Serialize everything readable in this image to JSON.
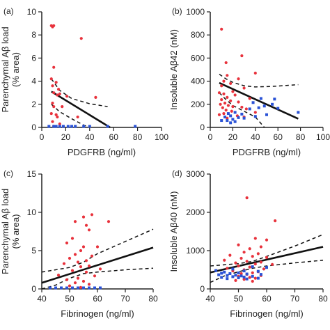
{
  "colors": {
    "group_red": "#e8323c",
    "group_blue": "#2a52d6",
    "axis": "#222222",
    "fit_line": "#111111"
  },
  "chart_data": [
    {
      "id": "a",
      "type": "scatter",
      "panel_label": "(a)",
      "xlabel": "PDGFRB (ng/ml)",
      "ylabel_lines": [
        "Parenchymal Aβ load",
        "(% area)"
      ],
      "xlim": [
        0,
        100
      ],
      "ylim": [
        0,
        10
      ],
      "xticks": [
        0,
        20,
        40,
        60,
        80,
        100
      ],
      "yticks": [
        0,
        2,
        4,
        6,
        8,
        10
      ],
      "grid": false,
      "series": [
        {
          "color": "#e8323c",
          "points": [
            [
              8,
              8.8
            ],
            [
              9,
              8.7
            ],
            [
              10,
              8.8
            ],
            [
              33,
              7.7
            ],
            [
              10,
              5.2
            ],
            [
              8,
              4.2
            ],
            [
              12,
              3.9
            ],
            [
              9,
              3.6
            ],
            [
              14,
              3.3
            ],
            [
              10,
              3.0
            ],
            [
              13,
              2.8
            ],
            [
              15,
              2.9
            ],
            [
              21,
              2.7
            ],
            [
              45,
              2.6
            ],
            [
              9,
              2.1
            ],
            [
              10,
              1.8
            ],
            [
              17,
              1.8
            ],
            [
              8,
              1.2
            ],
            [
              12,
              1.1
            ],
            [
              13,
              0.9
            ],
            [
              30,
              0.9
            ],
            [
              9,
              0.5
            ],
            [
              15,
              0.3
            ],
            [
              10,
              0.1
            ],
            [
              18,
              0.05
            ]
          ]
        },
        {
          "color": "#2a52d6",
          "points": [
            [
              6,
              0.05
            ],
            [
              10,
              0.05
            ],
            [
              12,
              0.05
            ],
            [
              15,
              0.05
            ],
            [
              18,
              0.05
            ],
            [
              22,
              0.05
            ],
            [
              25,
              0.05
            ],
            [
              28,
              0.05
            ],
            [
              35,
              0.05
            ],
            [
              40,
              0.05
            ],
            [
              55,
              0.05
            ],
            [
              78,
              0.05
            ]
          ]
        }
      ],
      "fit": {
        "x": [
          8,
          57
        ],
        "y": [
          3.1,
          0
        ]
      },
      "ci_upper": [
        [
          8,
          4.2
        ],
        [
          15,
          3.2
        ],
        [
          25,
          2.5
        ],
        [
          40,
          2.05
        ],
        [
          55,
          1.8
        ]
      ],
      "ci_lower": [
        [
          8,
          2.0
        ],
        [
          15,
          1.35
        ],
        [
          25,
          0.75
        ],
        [
          35,
          0.2
        ],
        [
          40,
          0
        ]
      ]
    },
    {
      "id": "b",
      "type": "scatter",
      "panel_label": "(b)",
      "xlabel": "PDGFRB (ng/ml)",
      "ylabel_lines": [
        "Insoluble Aβ42 (nM)"
      ],
      "xlim": [
        0,
        100
      ],
      "ylim": [
        0,
        1000
      ],
      "xticks": [
        0,
        20,
        40,
        60,
        80,
        100
      ],
      "yticks": [
        0,
        200,
        400,
        600,
        800,
        1000
      ],
      "grid": false,
      "series": [
        {
          "color": "#e8323c",
          "points": [
            [
              10,
              850
            ],
            [
              28,
              620
            ],
            [
              14,
              560
            ],
            [
              40,
              470
            ],
            [
              15,
              450
            ],
            [
              25,
              420
            ],
            [
              12,
              400
            ],
            [
              18,
              380
            ],
            [
              10,
              360
            ],
            [
              30,
              340
            ],
            [
              20,
              310
            ],
            [
              8,
              300
            ],
            [
              12,
              290
            ],
            [
              22,
              280
            ],
            [
              15,
              260
            ],
            [
              35,
              250
            ],
            [
              10,
              240
            ],
            [
              18,
              230
            ],
            [
              25,
              220
            ],
            [
              13,
              210
            ],
            [
              9,
              200
            ],
            [
              16,
              190
            ],
            [
              20,
              180
            ],
            [
              28,
              175
            ],
            [
              11,
              170
            ],
            [
              32,
              160
            ],
            [
              14,
              150
            ],
            [
              19,
              140
            ],
            [
              40,
              130
            ],
            [
              12,
              120
            ],
            [
              8,
              110
            ],
            [
              24,
              100
            ],
            [
              30,
              90
            ],
            [
              15,
              80
            ]
          ]
        },
        {
          "color": "#2a52d6",
          "points": [
            [
              45,
              250
            ],
            [
              57,
              245
            ],
            [
              38,
              215
            ],
            [
              55,
              200
            ],
            [
              48,
              185
            ],
            [
              43,
              170
            ],
            [
              60,
              165
            ],
            [
              35,
              160
            ],
            [
              78,
              130
            ],
            [
              22,
              130
            ],
            [
              16,
              120
            ],
            [
              28,
              115
            ],
            [
              50,
              110
            ],
            [
              18,
              100
            ],
            [
              40,
              95
            ],
            [
              13,
              90
            ],
            [
              25,
              85
            ],
            [
              30,
              80
            ],
            [
              20,
              70
            ],
            [
              15,
              60
            ],
            [
              10,
              60
            ],
            [
              22,
              50
            ],
            [
              18,
              40
            ]
          ]
        }
      ],
      "fit": {
        "x": [
          8,
          78
        ],
        "y": [
          385,
          75
        ]
      },
      "ci_upper": [
        [
          8,
          460
        ],
        [
          14,
          420
        ],
        [
          20,
          390
        ],
        [
          30,
          360
        ],
        [
          40,
          350
        ],
        [
          55,
          355
        ],
        [
          78,
          370
        ]
      ],
      "ci_lower": [
        [
          8,
          300
        ],
        [
          14,
          240
        ],
        [
          20,
          190
        ],
        [
          30,
          140
        ],
        [
          40,
          90
        ],
        [
          48,
          0
        ]
      ]
    },
    {
      "id": "c",
      "type": "scatter",
      "panel_label": "(c)",
      "xlabel": "Fibrinogen (ng/ml)",
      "ylabel_lines": [
        "Parenchymal Aβ load",
        "(% area)"
      ],
      "xlim": [
        40,
        80
      ],
      "ylim": [
        0,
        15
      ],
      "xticks": [
        40,
        50,
        60,
        70,
        80
      ],
      "yticks": [
        0,
        5,
        10,
        15
      ],
      "grid": false,
      "series": [
        {
          "color": "#e8323c",
          "points": [
            [
              58,
              9.7
            ],
            [
              55,
              9.4
            ],
            [
              64,
              8.8
            ],
            [
              52,
              8.8
            ],
            [
              56,
              8.3
            ],
            [
              57,
              7.7
            ],
            [
              51,
              6.6
            ],
            [
              49,
              6.0
            ],
            [
              55,
              5.5
            ],
            [
              60,
              5.5
            ],
            [
              54,
              5.0
            ],
            [
              52,
              4.5
            ],
            [
              58,
              4.3
            ],
            [
              50,
              4.0
            ],
            [
              56,
              3.7
            ],
            [
              53,
              3.5
            ],
            [
              48,
              3.3
            ],
            [
              57,
              3.0
            ],
            [
              54,
              2.9
            ],
            [
              61,
              2.6
            ],
            [
              51,
              2.4
            ],
            [
              56,
              2.2
            ],
            [
              46,
              1.8
            ],
            [
              59,
              1.7
            ],
            [
              53,
              1.4
            ],
            [
              49,
              1.2
            ],
            [
              55,
              1.0
            ],
            [
              52,
              0.8
            ],
            [
              57,
              0.6
            ],
            [
              50,
              0.4
            ],
            [
              54,
              0.2
            ]
          ]
        },
        {
          "color": "#2a52d6",
          "points": [
            [
              43,
              0.05
            ],
            [
              45,
              0.05
            ],
            [
              47,
              0.05
            ],
            [
              49,
              0.05
            ],
            [
              51,
              0.05
            ],
            [
              53,
              0.05
            ],
            [
              55,
              0.05
            ],
            [
              57,
              0.05
            ],
            [
              59,
              0.05
            ],
            [
              61,
              0.05
            ]
          ]
        }
      ],
      "fit": {
        "x": [
          40,
          80
        ],
        "y": [
          0.8,
          5.4
        ]
      },
      "ci_upper": [
        [
          40,
          2.2
        ],
        [
          50,
          2.8
        ],
        [
          55,
          3.5
        ],
        [
          60,
          4.6
        ],
        [
          70,
          6.2
        ],
        [
          80,
          7.8
        ]
      ],
      "ci_lower": [
        [
          40,
          0
        ],
        [
          45,
          0.5
        ],
        [
          50,
          1.4
        ],
        [
          55,
          2.0
        ],
        [
          60,
          2.2
        ],
        [
          70,
          2.5
        ],
        [
          80,
          2.7
        ]
      ]
    },
    {
      "id": "d",
      "type": "scatter",
      "panel_label": "(d)",
      "xlabel": "Fibrinogen (ng/ml)",
      "ylabel_lines": [
        "Insoluble Aβ40 (nM)"
      ],
      "xlim": [
        40,
        80
      ],
      "ylim": [
        0,
        3000
      ],
      "xticks": [
        40,
        50,
        60,
        70,
        80
      ],
      "yticks": [
        0,
        1000,
        2000,
        3000
      ],
      "grid": false,
      "series": [
        {
          "color": "#e8323c",
          "points": [
            [
              53,
              2380
            ],
            [
              63,
              1780
            ],
            [
              56,
              1320
            ],
            [
              60,
              1280
            ],
            [
              50,
              1150
            ],
            [
              58,
              1100
            ],
            [
              54,
              1050
            ],
            [
              52,
              960
            ],
            [
              57,
              920
            ],
            [
              47,
              880
            ],
            [
              55,
              850
            ],
            [
              60,
              820
            ],
            [
              51,
              800
            ],
            [
              45,
              750
            ],
            [
              53,
              720
            ],
            [
              58,
              700
            ],
            [
              49,
              680
            ],
            [
              56,
              650
            ],
            [
              62,
              640
            ],
            [
              50,
              600
            ],
            [
              54,
              570
            ],
            [
              46,
              540
            ],
            [
              59,
              520
            ],
            [
              52,
              500
            ],
            [
              48,
              470
            ],
            [
              57,
              450
            ],
            [
              55,
              420
            ],
            [
              51,
              400
            ],
            [
              53,
              380
            ],
            [
              58,
              350
            ],
            [
              50,
              330
            ],
            [
              54,
              300
            ],
            [
              56,
              280
            ],
            [
              52,
              250
            ],
            [
              49,
              220
            ],
            [
              55,
              200
            ]
          ]
        },
        {
          "color": "#2a52d6",
          "points": [
            [
              55,
              580
            ],
            [
              60,
              560
            ],
            [
              48,
              520
            ],
            [
              42,
              480
            ],
            [
              52,
              470
            ],
            [
              57,
              460
            ],
            [
              45,
              440
            ],
            [
              50,
              420
            ],
            [
              44,
              410
            ],
            [
              47,
              400
            ],
            [
              53,
              390
            ],
            [
              58,
              380
            ],
            [
              43,
              370
            ],
            [
              49,
              360
            ],
            [
              46,
              350
            ],
            [
              51,
              340
            ],
            [
              55,
              330
            ],
            [
              48,
              320
            ],
            [
              52,
              310
            ],
            [
              44,
              300
            ],
            [
              50,
              290
            ],
            [
              57,
              280
            ],
            [
              46,
              270
            ],
            [
              53,
              260
            ]
          ]
        }
      ],
      "fit": {
        "x": [
          40,
          80
        ],
        "y": [
          430,
          1100
        ]
      },
      "ci_upper": [
        [
          40,
          600
        ],
        [
          50,
          660
        ],
        [
          55,
          720
        ],
        [
          60,
          850
        ],
        [
          70,
          1120
        ],
        [
          80,
          1420
        ]
      ],
      "ci_lower": [
        [
          40,
          170
        ],
        [
          45,
          340
        ],
        [
          50,
          450
        ],
        [
          55,
          540
        ],
        [
          60,
          600
        ],
        [
          70,
          680
        ],
        [
          80,
          750
        ]
      ]
    }
  ]
}
